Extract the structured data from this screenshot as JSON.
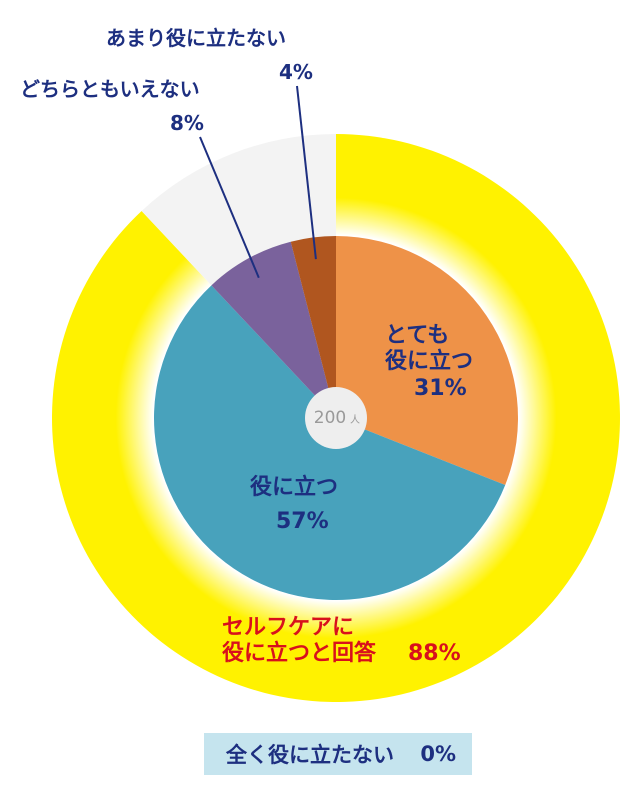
{
  "chart_data": {
    "type": "pie",
    "center_label": {
      "value": "200",
      "unit": "人"
    },
    "inner": {
      "slices": [
        {
          "name": "とても役に立つ",
          "lines": [
            "とても",
            "役に立つ"
          ],
          "value": 31,
          "label": "31%",
          "color": "#ee9248"
        },
        {
          "name": "役に立つ",
          "lines": [
            "役に立つ"
          ],
          "value": 57,
          "label": "57%",
          "color": "#48a2bc"
        },
        {
          "name": "どちらともいえない",
          "lines": [
            "どちらともいえない"
          ],
          "value": 8,
          "label": "8%",
          "color": "#7a629c"
        },
        {
          "name": "あまり役に立たない",
          "lines": [
            "あまり役に立たない"
          ],
          "value": 4,
          "label": "4%",
          "color": "#b0561f"
        }
      ]
    },
    "outer": {
      "slices": [
        {
          "name": "セルフケアに役に立つと回答",
          "lines": [
            "セルフケアに",
            "役に立つと回答"
          ],
          "value": 88,
          "label": "88%",
          "color": "#fff200"
        },
        {
          "name": "other",
          "value": 12,
          "color": "#f3f3f3"
        }
      ]
    },
    "note": {
      "label": "全く役に立たない",
      "value": "0%"
    }
  }
}
